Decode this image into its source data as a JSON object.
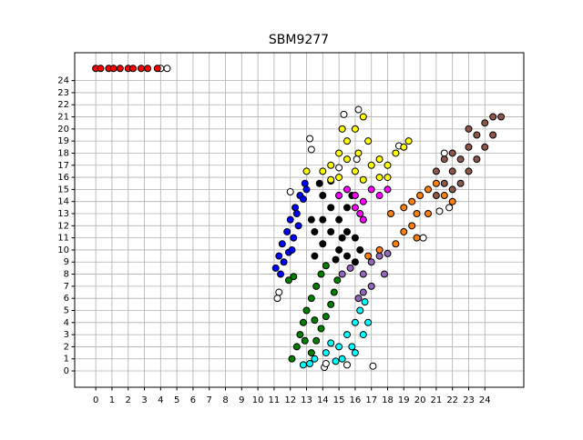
{
  "chart_data": {
    "type": "scatter",
    "title": "SBM9277",
    "xlim": [
      -1.3,
      26.4
    ],
    "ylim": [
      -1.35,
      26.3
    ],
    "xticks": [
      0,
      1,
      2,
      3,
      4,
      5,
      6,
      7,
      8,
      9,
      10,
      11,
      12,
      13,
      14,
      15,
      16,
      17,
      18,
      19,
      20,
      21,
      22,
      23,
      24
    ],
    "yticks": [
      0,
      1,
      2,
      3,
      4,
      5,
      6,
      7,
      8,
      9,
      10,
      11,
      12,
      13,
      14,
      15,
      16,
      17,
      18,
      19,
      20,
      21,
      22,
      23,
      24
    ],
    "grid": true,
    "series": [
      {
        "color": "#ffffff",
        "x": [
          4,
          4.4,
          11.3,
          11.2,
          12,
          13.2,
          13.3,
          15.3,
          16.2,
          15,
          17.1,
          14.1,
          14.2,
          15.5,
          18.7,
          20.2,
          21.2,
          21.8,
          21.5,
          16.1
        ],
        "y": [
          25,
          25,
          6.5,
          6,
          14.8,
          19.2,
          18.3,
          21.2,
          21.6,
          16.8,
          0.4,
          0.3,
          0.6,
          0.5,
          18.6,
          11,
          13.2,
          13.5,
          18,
          17.5
        ]
      },
      {
        "color": "#ff0000",
        "x": [
          0,
          0.3,
          0.8,
          1.1,
          1.5,
          2,
          2.3,
          2.8,
          3.2,
          3.8
        ],
        "y": [
          25,
          25,
          25,
          25,
          25,
          25,
          25,
          25,
          25,
          25
        ]
      },
      {
        "color": "#0000ff",
        "x": [
          11.1,
          11.3,
          11.5,
          11.8,
          12,
          12.3,
          12.6,
          12.9,
          12.2,
          12.5,
          11.9,
          12.4,
          11.6,
          12.8,
          13,
          11.4,
          12.1
        ],
        "y": [
          8.5,
          9.5,
          10.5,
          11.5,
          12.5,
          13.5,
          14.5,
          15.5,
          11,
          12,
          9.8,
          13,
          9,
          14.2,
          15,
          8,
          10
        ]
      },
      {
        "color": "#008000",
        "x": [
          12.1,
          12.4,
          12.6,
          12.8,
          13,
          13.3,
          13.6,
          13.9,
          14.2,
          13.3,
          13.6,
          13.9,
          14.2,
          14.5,
          14.7,
          14.9,
          12.9,
          13.5,
          11.9,
          12.2
        ],
        "y": [
          1,
          2,
          3,
          4,
          5,
          6,
          7,
          8,
          8.7,
          1.5,
          2.5,
          3.5,
          4.5,
          5.5,
          6.5,
          7.5,
          2.5,
          4.2,
          7.5,
          7.8
        ]
      },
      {
        "color": "#00ffff",
        "x": [
          12.8,
          13.5,
          14.2,
          15,
          15.5,
          16,
          16.3,
          16.6,
          15.2,
          15.8,
          16.5,
          16.8,
          14.8,
          16,
          13.2,
          14.5
        ],
        "y": [
          0.5,
          1,
          1.5,
          2,
          3,
          4,
          5,
          5.7,
          1,
          2,
          3,
          4,
          0.8,
          1.5,
          0.6,
          2.3
        ]
      },
      {
        "color": "#000000",
        "x": [
          13.5,
          14,
          14.5,
          15,
          15.5,
          15.8,
          14,
          14.5,
          15,
          13.5,
          13.3,
          14,
          16,
          16.3,
          15.5,
          16,
          15,
          15.5,
          16.5,
          13.8,
          14.5,
          14.8,
          15.2
        ],
        "y": [
          9.5,
          10.5,
          11.5,
          12.5,
          13.5,
          14.5,
          12.5,
          13.5,
          14.5,
          11.5,
          12.5,
          14.5,
          11,
          10,
          9.5,
          9,
          10,
          11.5,
          12.5,
          15.5,
          15.7,
          9.2,
          11
        ]
      },
      {
        "color": "#ff00ff",
        "x": [
          15,
          15.5,
          16,
          16.5,
          17,
          17.5,
          18,
          16.3,
          16.5,
          16
        ],
        "y": [
          14.5,
          15,
          14.5,
          14,
          15,
          14.5,
          15,
          13,
          12.5,
          13.5
        ]
      },
      {
        "color": "#9467bd",
        "x": [
          15.2,
          15.7,
          16.5,
          17,
          17.5,
          17,
          16.5,
          16.2,
          17.8,
          18
        ],
        "y": [
          8,
          8.5,
          8,
          9,
          9.5,
          7,
          6.5,
          6,
          8,
          9.7
        ]
      },
      {
        "color": "#ffff00",
        "x": [
          13,
          14,
          14.5,
          15,
          15.5,
          16,
          16.5,
          15,
          16,
          17,
          17.5,
          18,
          18.5,
          19,
          16.2,
          15.5,
          16.8,
          17.5,
          18,
          15.2,
          16.5,
          14.5,
          19.3
        ],
        "y": [
          16.5,
          16.5,
          17,
          18,
          19,
          20,
          21,
          16,
          16.5,
          17,
          16,
          17,
          18,
          18.5,
          18,
          17.5,
          19,
          17.5,
          16,
          20,
          15.8,
          15.8,
          19
        ]
      },
      {
        "color": "#ff7f0e",
        "x": [
          16.8,
          17.5,
          18.5,
          19,
          19.5,
          19.8,
          19,
          19.5,
          20,
          20.5,
          21,
          21.5,
          22,
          19.8,
          18.2,
          20.5
        ],
        "y": [
          9.5,
          10,
          10.5,
          11.5,
          12,
          13,
          13.5,
          14,
          14.5,
          15,
          15.5,
          14.5,
          14,
          11,
          13,
          13
        ]
      },
      {
        "color": "#8c564b",
        "x": [
          21,
          21.5,
          22,
          22.5,
          23,
          23.5,
          24,
          24.5,
          25,
          22,
          23,
          23.5,
          24,
          24.5,
          21,
          21.5,
          22.5,
          23,
          22
        ],
        "y": [
          14.5,
          15.5,
          16.5,
          17.5,
          18.5,
          19.5,
          20.5,
          21,
          21,
          15,
          16.5,
          17.5,
          18.5,
          19.5,
          16.5,
          17.5,
          15.5,
          20,
          18
        ]
      }
    ]
  }
}
